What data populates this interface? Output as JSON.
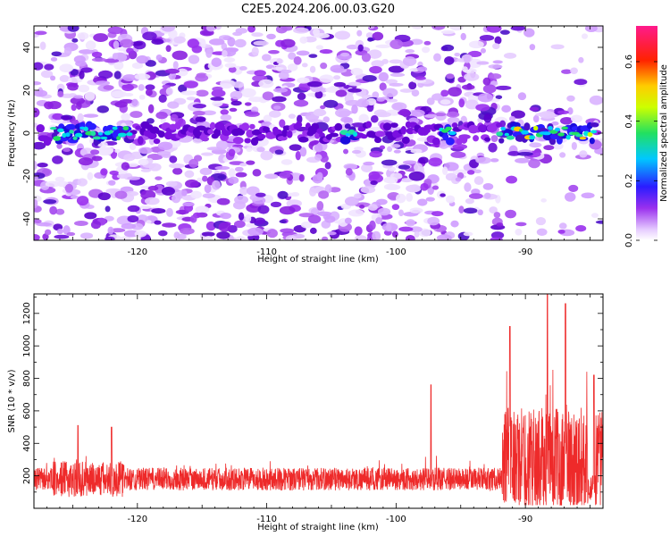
{
  "title": "C2E5.2024.206.00.03.G20",
  "colors": {
    "snr_line": "#ee2a2a",
    "axis": "#000000",
    "background": "#ffffff"
  },
  "chart_data": [
    {
      "type": "heatmap",
      "xlabel": "Height of straight line (km)",
      "ylabel": "Frequency (Hz)",
      "xlim": [
        -128,
        -84
      ],
      "ylim": [
        -50,
        50
      ],
      "xticks": [
        -120,
        -110,
        -100,
        -90
      ],
      "yticks": [
        -40,
        -20,
        0,
        20,
        40
      ],
      "colorbar": {
        "label": "Normalized spectral amplitude",
        "range": [
          0.0,
          0.72
        ],
        "ticks": [
          0.0,
          0.2,
          0.4,
          0.6
        ],
        "colormap": "rainbow (white - violet - blue - cyan - green - yellow - red - magenta)"
      },
      "band_center_hz": 0,
      "strong_segments_km": [
        {
          "from": -126.5,
          "to": -120.5,
          "peak": 0.3
        },
        {
          "from": -104.0,
          "to": -103.0,
          "peak": 0.25
        },
        {
          "from": -96.5,
          "to": -95.5,
          "peak": 0.25
        },
        {
          "from": -92.0,
          "to": -84.5,
          "peak": 0.6
        }
      ]
    },
    {
      "type": "line",
      "xlabel": "Height of straight line (km)",
      "ylabel": "SNR (10 * v/v)",
      "xlim": [
        -128,
        -84
      ],
      "ylim": [
        0,
        1320
      ],
      "xticks": [
        -120,
        -110,
        -100,
        -90
      ],
      "yticks": [
        200,
        400,
        600,
        800,
        1000,
        1200
      ],
      "noise_floor": 180,
      "notable_peaks": [
        {
          "x": -124.6,
          "y": 510
        },
        {
          "x": -122.0,
          "y": 500
        },
        {
          "x": -97.3,
          "y": 760
        },
        {
          "x": -91.2,
          "y": 1120
        },
        {
          "x": -88.3,
          "y": 1320
        },
        {
          "x": -86.9,
          "y": 1260
        },
        {
          "x": -84.7,
          "y": 820
        }
      ]
    }
  ]
}
